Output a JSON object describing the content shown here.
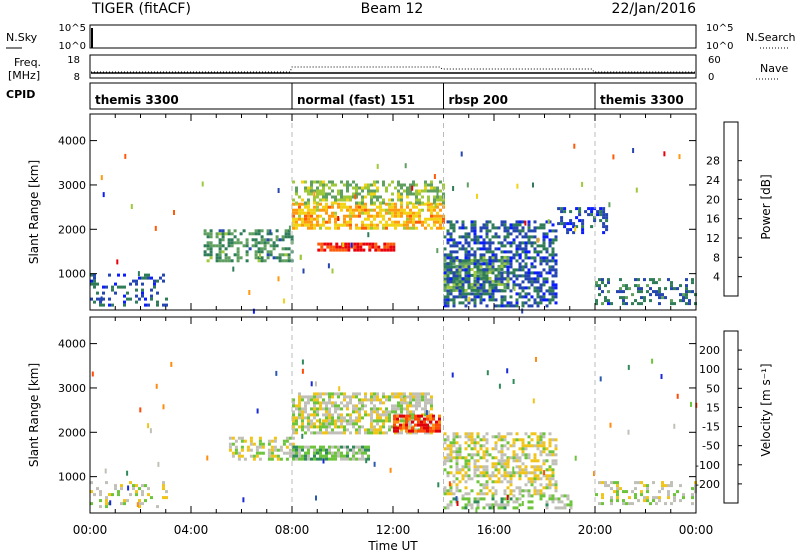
{
  "header": {
    "radar": "TIGER (fitACF)",
    "beam": "Beam 12",
    "date": "22/Jan/2016"
  },
  "top_panels": {
    "nsky_label": "N.Sky",
    "nsky_ticks": [
      "10^5",
      "10^0"
    ],
    "nsearch_label": "N.Search",
    "freq_label_line1": "Freq.",
    "freq_label_line2": "[MHz]",
    "freq_ticks": [
      "18",
      "8"
    ],
    "nave_ticks": [
      "60",
      "0"
    ],
    "nave_label": "Nave",
    "cpid_label": "CPID"
  },
  "cpid_segments": [
    {
      "label": "themis 3300",
      "start_hour": 0
    },
    {
      "label": "normal (fast) 151",
      "start_hour": 8
    },
    {
      "label": "rbsp 200",
      "start_hour": 14
    },
    {
      "label": "themis 3300",
      "start_hour": 20
    }
  ],
  "axes": {
    "ylabel": "Slant Range [km]",
    "xlabel": "Time UT",
    "y_ticks": [
      "1000",
      "2000",
      "3000",
      "4000"
    ],
    "x_ticks": [
      "00:00",
      "04:00",
      "08:00",
      "12:00",
      "16:00",
      "20:00",
      "00:00"
    ]
  },
  "power_colorbar": {
    "label": "Power [dB]",
    "ticks": [
      "4",
      "8",
      "12",
      "16",
      "20",
      "24",
      "28"
    ],
    "colors": [
      "#0a1cff",
      "#2545b0",
      "#2f7c58",
      "#5fa060",
      "#9ec93a",
      "#f2d315",
      "#ff9a10",
      "#ff5a08",
      "#e8000a"
    ]
  },
  "velocity_colorbar": {
    "label": "Velocity [m s⁻¹]",
    "ticks": [
      "200",
      "100",
      "50",
      "15",
      "-15",
      "-50",
      "-100",
      "-200"
    ],
    "colors": [
      "#1a2ad8",
      "#2a5ab0",
      "#2f8a5a",
      "#6cc43a",
      "#c0c0b8",
      "#f0c418",
      "#ff8c10",
      "#ff4a08",
      "#e0000a"
    ]
  },
  "chart_data": {
    "type": "heatmap",
    "title": "TIGER (fitACF)  Beam 12  22/Jan/2016",
    "xlabel": "Time UT",
    "ylabel": "Slant Range [km]",
    "xlim_hours": [
      0,
      24
    ],
    "ylim_km": [
      180,
      4600
    ],
    "panels": [
      {
        "name": "Power [dB]",
        "value_range": [
          0,
          30
        ],
        "regions": [
          {
            "t": [
              0.0,
              3.0
            ],
            "r": [
              300,
              1000
            ],
            "value": 6,
            "density": 0.25
          },
          {
            "t": [
              4.5,
              8.0
            ],
            "r": [
              1300,
              2000
            ],
            "value": 10,
            "density": 0.45
          },
          {
            "t": [
              8.0,
              14.0
            ],
            "r": [
              2000,
              2600
            ],
            "value": 20,
            "density": 0.7
          },
          {
            "t": [
              9.0,
              12.0
            ],
            "r": [
              1500,
              1700
            ],
            "value": 27,
            "density": 0.8
          },
          {
            "t": [
              8.0,
              14.0
            ],
            "r": [
              2600,
              3100
            ],
            "value": 14,
            "density": 0.55
          },
          {
            "t": [
              14.0,
              16.5
            ],
            "r": [
              600,
              1400
            ],
            "value": 12,
            "density": 0.7
          },
          {
            "t": [
              14.0,
              18.5
            ],
            "r": [
              300,
              2200
            ],
            "value": 6,
            "density": 0.55
          },
          {
            "t": [
              18.5,
              20.5
            ],
            "r": [
              1900,
              2500
            ],
            "value": 5,
            "density": 0.4
          },
          {
            "t": [
              20.0,
              24.0
            ],
            "r": [
              300,
              900
            ],
            "value": 7,
            "density": 0.35
          }
        ]
      },
      {
        "name": "Velocity [m s^-1]",
        "value_range": [
          -250,
          250
        ],
        "regions": [
          {
            "t": [
              0.0,
              3.0
            ],
            "r": [
              300,
              900
            ],
            "value": 0,
            "density": 0.2
          },
          {
            "t": [
              5.5,
              8.0
            ],
            "r": [
              1400,
              1900
            ],
            "value": 0,
            "density": 0.45
          },
          {
            "t": [
              8.0,
              11.0
            ],
            "r": [
              1400,
              1700
            ],
            "value": 60,
            "density": 0.8
          },
          {
            "t": [
              8.0,
              13.5
            ],
            "r": [
              2000,
              2900
            ],
            "value": 0,
            "density": 0.65
          },
          {
            "t": [
              12.0,
              13.8
            ],
            "r": [
              2000,
              2400
            ],
            "value": -180,
            "density": 0.75
          },
          {
            "t": [
              14.0,
              18.5
            ],
            "r": [
              600,
              2000
            ],
            "value": -10,
            "density": 0.55
          },
          {
            "t": [
              14.0,
              19.0
            ],
            "r": [
              300,
              600
            ],
            "value": 40,
            "density": 0.45
          },
          {
            "t": [
              20.0,
              24.0
            ],
            "r": [
              400,
              900
            ],
            "value": 0,
            "density": 0.35
          }
        ]
      }
    ]
  }
}
